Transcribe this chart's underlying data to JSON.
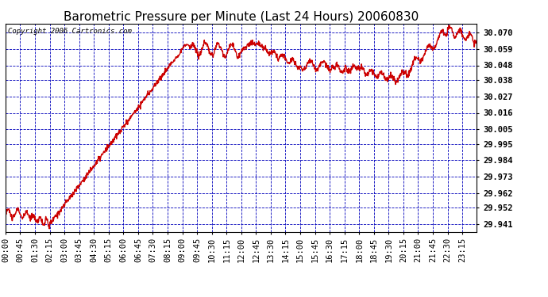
{
  "title": "Barometric Pressure per Minute (Last 24 Hours) 20060830",
  "copyright_text": "Copyright 2006 Cartronics.com",
  "line_color": "#cc0000",
  "bg_color": "#ffffff",
  "plot_bg_color": "#ffffff",
  "grid_color": "#0000bb",
  "axis_color": "#000000",
  "yticks": [
    29.941,
    29.952,
    29.962,
    29.973,
    29.984,
    29.995,
    30.005,
    30.016,
    30.027,
    30.038,
    30.048,
    30.059,
    30.07
  ],
  "ylim": [
    29.936,
    30.076
  ],
  "xtick_labels": [
    "00:00",
    "00:45",
    "01:30",
    "02:15",
    "03:00",
    "03:45",
    "04:30",
    "05:15",
    "06:00",
    "06:45",
    "07:30",
    "08:15",
    "09:00",
    "09:45",
    "10:30",
    "11:15",
    "12:00",
    "12:45",
    "13:30",
    "14:15",
    "15:00",
    "15:45",
    "16:30",
    "17:15",
    "18:00",
    "18:45",
    "19:30",
    "20:15",
    "21:00",
    "21:45",
    "22:30",
    "23:15"
  ],
  "title_fontsize": 11,
  "tick_fontsize": 7.5,
  "copyright_fontsize": 6.5,
  "line_width": 1.0
}
